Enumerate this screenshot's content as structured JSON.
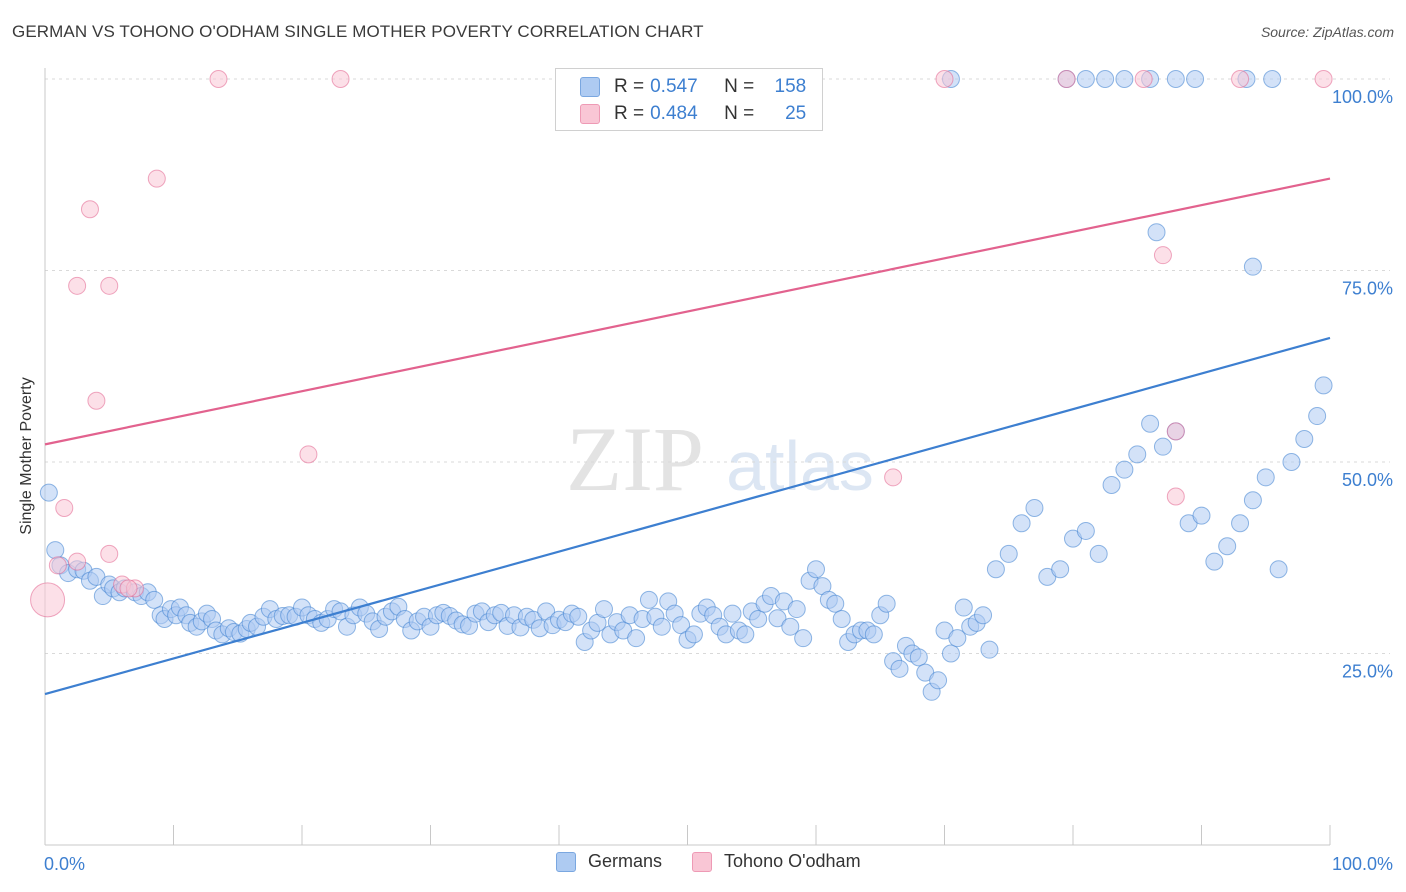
{
  "title": "GERMAN VS TOHONO O'ODHAM SINGLE MOTHER POVERTY CORRELATION CHART",
  "source": "Source: ZipAtlas.com",
  "watermark": {
    "zip": "ZIP",
    "atlas": "atlas"
  },
  "legend_top": {
    "r_label": "R =",
    "n_label": "N =",
    "rows": [
      {
        "r": "0.547",
        "n": "158",
        "fill": "#aecbf2",
        "stroke": "#7aa7e0"
      },
      {
        "r": "0.484",
        "n": "25",
        "fill": "#f9c6d5",
        "stroke": "#ee9ab5"
      }
    ]
  },
  "legend_bottom": [
    {
      "label": "Germans",
      "fill": "#aecbf2",
      "stroke": "#7aa7e0"
    },
    {
      "label": "Tohono O'odham",
      "fill": "#f9c6d5",
      "stroke": "#ee9ab5"
    }
  ],
  "chart_data": {
    "type": "scatter",
    "title": "GERMAN VS TOHONO O'ODHAM SINGLE MOTHER POVERTY CORRELATION CHART",
    "xlabel": "",
    "ylabel": "Single Mother Poverty",
    "xlim": [
      0,
      100
    ],
    "ylim": [
      0,
      100
    ],
    "x_tick_labels": [
      "0.0%",
      "100.0%"
    ],
    "y_ticks": [
      25,
      50,
      75,
      100
    ],
    "y_tick_labels": [
      "25.0%",
      "50.0%",
      "75.0%",
      "100.0%"
    ],
    "grid": "horizontal dashed",
    "legend_placement": "top-center and bottom",
    "series": [
      {
        "name": "Germans",
        "color": "#3d7fd0",
        "fill": "#aecbf2",
        "R": 0.547,
        "N": 158,
        "trend": {
          "x": [
            0,
            100
          ],
          "y": [
            19.7,
            66.2
          ]
        },
        "points": [
          [
            0.3,
            46
          ],
          [
            0.8,
            38.5
          ],
          [
            1.2,
            36.5
          ],
          [
            1.8,
            35.5
          ],
          [
            2.5,
            36
          ],
          [
            3,
            35.8
          ],
          [
            3.5,
            34.5
          ],
          [
            4,
            35
          ],
          [
            4.5,
            32.5
          ],
          [
            5,
            34
          ],
          [
            5.3,
            33.5
          ],
          [
            5.8,
            33
          ],
          [
            6.2,
            33.5
          ],
          [
            7,
            33
          ],
          [
            7.5,
            32.5
          ],
          [
            8,
            33
          ],
          [
            8.5,
            32
          ],
          [
            9,
            30
          ],
          [
            9.3,
            29.5
          ],
          [
            9.8,
            30.8
          ],
          [
            10.2,
            30
          ],
          [
            10.5,
            31
          ],
          [
            11,
            30
          ],
          [
            11.3,
            29
          ],
          [
            11.8,
            28.5
          ],
          [
            12.2,
            29.2
          ],
          [
            12.6,
            30.2
          ],
          [
            13,
            29.5
          ],
          [
            13.3,
            28
          ],
          [
            13.8,
            27.5
          ],
          [
            14.3,
            28.3
          ],
          [
            14.7,
            27.8
          ],
          [
            15.2,
            27.6
          ],
          [
            15.7,
            28.2
          ],
          [
            16,
            29
          ],
          [
            16.5,
            28.5
          ],
          [
            17,
            29.8
          ],
          [
            17.5,
            30.8
          ],
          [
            18,
            29.5
          ],
          [
            18.5,
            29.9
          ],
          [
            19,
            30
          ],
          [
            19.5,
            29.8
          ],
          [
            20,
            31
          ],
          [
            20.5,
            30
          ],
          [
            21,
            29.5
          ],
          [
            21.5,
            29
          ],
          [
            22,
            29.5
          ],
          [
            22.5,
            30.8
          ],
          [
            23,
            30.5
          ],
          [
            23.5,
            28.5
          ],
          [
            24,
            30
          ],
          [
            24.5,
            31
          ],
          [
            25,
            30.2
          ],
          [
            25.5,
            29.2
          ],
          [
            26,
            28.2
          ],
          [
            26.5,
            29.8
          ],
          [
            27,
            30.5
          ],
          [
            27.5,
            31.1
          ],
          [
            28,
            29.5
          ],
          [
            28.5,
            28
          ],
          [
            29,
            29.2
          ],
          [
            29.5,
            29.8
          ],
          [
            30,
            28.5
          ],
          [
            30.5,
            30
          ],
          [
            31,
            30.3
          ],
          [
            31.5,
            29.9
          ],
          [
            32,
            29.3
          ],
          [
            32.5,
            28.8
          ],
          [
            33,
            28.6
          ],
          [
            33.5,
            30.2
          ],
          [
            34,
            30.5
          ],
          [
            34.5,
            29.1
          ],
          [
            35,
            30
          ],
          [
            35.5,
            30.3
          ],
          [
            36,
            28.6
          ],
          [
            36.5,
            30
          ],
          [
            37,
            28.4
          ],
          [
            37.5,
            29.8
          ],
          [
            38,
            29.4
          ],
          [
            38.5,
            28.3
          ],
          [
            39,
            30.5
          ],
          [
            39.5,
            28.7
          ],
          [
            40,
            29.4
          ],
          [
            40.5,
            29.1
          ],
          [
            41,
            30.2
          ],
          [
            41.5,
            29.8
          ],
          [
            42,
            26.5
          ],
          [
            42.5,
            28
          ],
          [
            43,
            29
          ],
          [
            43.5,
            30.8
          ],
          [
            44,
            27.5
          ],
          [
            44.5,
            29.1
          ],
          [
            45,
            28
          ],
          [
            45.5,
            30
          ],
          [
            46,
            27
          ],
          [
            46.5,
            29.5
          ],
          [
            47,
            32
          ],
          [
            47.5,
            29.8
          ],
          [
            48,
            28.5
          ],
          [
            48.5,
            31.8
          ],
          [
            49,
            30.2
          ],
          [
            49.5,
            28.7
          ],
          [
            50,
            26.8
          ],
          [
            50.5,
            27.5
          ],
          [
            51,
            30.2
          ],
          [
            51.5,
            31
          ],
          [
            52,
            30
          ],
          [
            52.5,
            28.5
          ],
          [
            53,
            27.5
          ],
          [
            53.5,
            30.2
          ],
          [
            54,
            28
          ],
          [
            54.5,
            27.5
          ],
          [
            55,
            30.5
          ],
          [
            55.5,
            29.5
          ],
          [
            56,
            31.5
          ],
          [
            56.5,
            32.5
          ],
          [
            57,
            29.6
          ],
          [
            57.5,
            31.8
          ],
          [
            58,
            28.5
          ],
          [
            58.5,
            30.8
          ],
          [
            59,
            27
          ],
          [
            59.5,
            34.5
          ],
          [
            60,
            36
          ],
          [
            60.5,
            33.8
          ],
          [
            61,
            32
          ],
          [
            61.5,
            31.5
          ],
          [
            62,
            29.5
          ],
          [
            62.5,
            26.5
          ],
          [
            63,
            27.5
          ],
          [
            63.5,
            28
          ],
          [
            64,
            28
          ],
          [
            64.5,
            27.5
          ],
          [
            65,
            30
          ],
          [
            65.5,
            31.5
          ],
          [
            66,
            24
          ],
          [
            66.5,
            23
          ],
          [
            67,
            26
          ],
          [
            67.5,
            25
          ],
          [
            68,
            24.5
          ],
          [
            68.5,
            22.5
          ],
          [
            69,
            20
          ],
          [
            69.5,
            21.5
          ],
          [
            70,
            28
          ],
          [
            70.5,
            25
          ],
          [
            71,
            27
          ],
          [
            71.5,
            31
          ],
          [
            72,
            28.5
          ],
          [
            72.5,
            29
          ],
          [
            73,
            30
          ],
          [
            73.5,
            25.5
          ],
          [
            74,
            36
          ],
          [
            75,
            38
          ],
          [
            76,
            42
          ],
          [
            77,
            44
          ],
          [
            78,
            35
          ],
          [
            79,
            36
          ],
          [
            80,
            40
          ],
          [
            81,
            41
          ],
          [
            82,
            38
          ],
          [
            83,
            47
          ],
          [
            84,
            49
          ],
          [
            85,
            51
          ],
          [
            86,
            55
          ],
          [
            87,
            52
          ],
          [
            88,
            54
          ],
          [
            89,
            42
          ],
          [
            90,
            43
          ],
          [
            91,
            37
          ],
          [
            92,
            39
          ],
          [
            93,
            42
          ],
          [
            94,
            45
          ],
          [
            95,
            48
          ],
          [
            96,
            36
          ],
          [
            97,
            50
          ],
          [
            98,
            53
          ],
          [
            99,
            56
          ],
          [
            99.5,
            60
          ],
          [
            70.5,
            100
          ],
          [
            79.5,
            100
          ],
          [
            81,
            100
          ],
          [
            82.5,
            100
          ],
          [
            84,
            100
          ],
          [
            86,
            100
          ],
          [
            88,
            100
          ],
          [
            89.5,
            100
          ],
          [
            93.5,
            100
          ],
          [
            95.5,
            100
          ],
          [
            86.5,
            80
          ],
          [
            94,
            75.5
          ]
        ]
      },
      {
        "name": "Tohono O'odham",
        "color": "#e2628e",
        "fill": "#f9c6d5",
        "R": 0.484,
        "N": 25,
        "trend": {
          "x": [
            0,
            100
          ],
          "y": [
            52.3,
            87
          ]
        },
        "points": [
          [
            0.2,
            32
          ],
          [
            1,
            36.5
          ],
          [
            1.5,
            44
          ],
          [
            2.5,
            37
          ],
          [
            3.5,
            83
          ],
          [
            2.5,
            73
          ],
          [
            5,
            73
          ],
          [
            4,
            58
          ],
          [
            5,
            38
          ],
          [
            6,
            34
          ],
          [
            7,
            33.5
          ],
          [
            8.7,
            87
          ],
          [
            13.5,
            100
          ],
          [
            23,
            100
          ],
          [
            20.5,
            51
          ],
          [
            70,
            100
          ],
          [
            79.5,
            100
          ],
          [
            85.5,
            100
          ],
          [
            87,
            77
          ],
          [
            88,
            54
          ],
          [
            66,
            48
          ],
          [
            88,
            45.5
          ],
          [
            93,
            100
          ],
          [
            99.5,
            100
          ],
          [
            6.5,
            33.5
          ]
        ]
      }
    ]
  }
}
